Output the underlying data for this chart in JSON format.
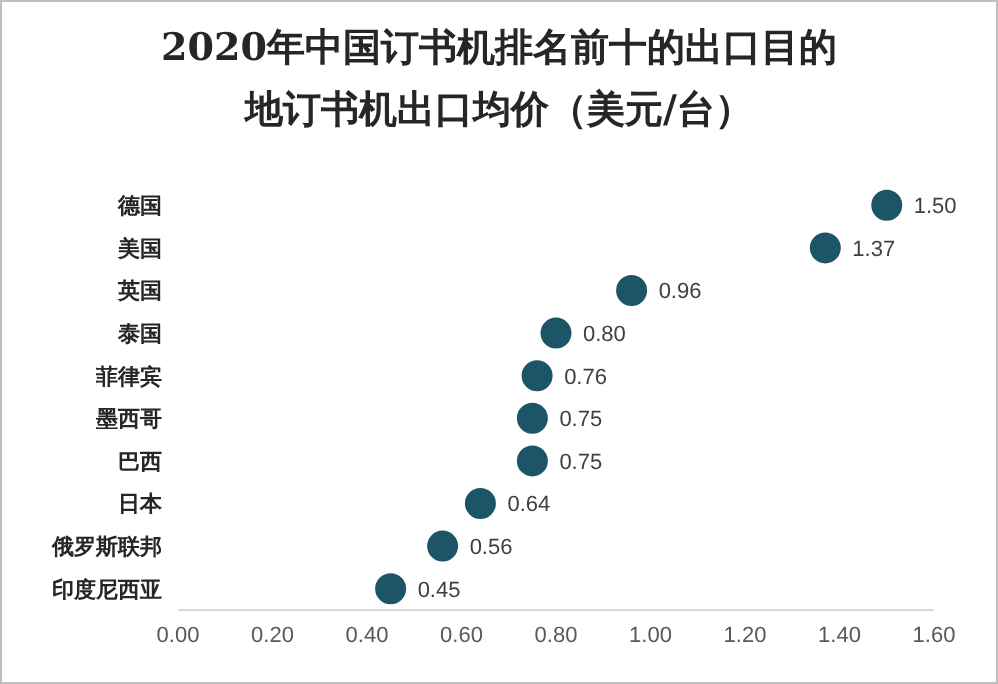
{
  "chart_data": {
    "type": "scatter",
    "orientation": "horizontal",
    "title": "2020年中国订书机排名前十的出口目的地订书机出口均价（美元/台）",
    "categories": [
      "德国",
      "美国",
      "英国",
      "泰国",
      "菲律宾",
      "墨西哥",
      "巴西",
      "日本",
      "俄罗斯联邦",
      "印度尼西亚"
    ],
    "values": [
      1.5,
      1.37,
      0.96,
      0.8,
      0.76,
      0.75,
      0.75,
      0.64,
      0.56,
      0.45
    ],
    "value_labels": [
      "1.50",
      "1.37",
      "0.96",
      "0.80",
      "0.76",
      "0.75",
      "0.75",
      "0.64",
      "0.56",
      "0.45"
    ],
    "color": "#1b5566",
    "marker": "circle",
    "grid": false,
    "legend": false,
    "xlim": [
      0,
      1.6
    ],
    "xticks": [
      {
        "value": 0,
        "label": "0.00"
      },
      {
        "value": 0.2,
        "label": "0.20"
      },
      {
        "value": 0.4,
        "label": "0.40"
      },
      {
        "value": 0.6,
        "label": "0.60"
      },
      {
        "value": 0.8,
        "label": "0.80"
      },
      {
        "value": 1,
        "label": "1.00"
      },
      {
        "value": 1.2,
        "label": "1.20"
      },
      {
        "value": 1.4,
        "label": "1.40"
      },
      {
        "value": 1.6,
        "label": "1.60"
      }
    ]
  }
}
